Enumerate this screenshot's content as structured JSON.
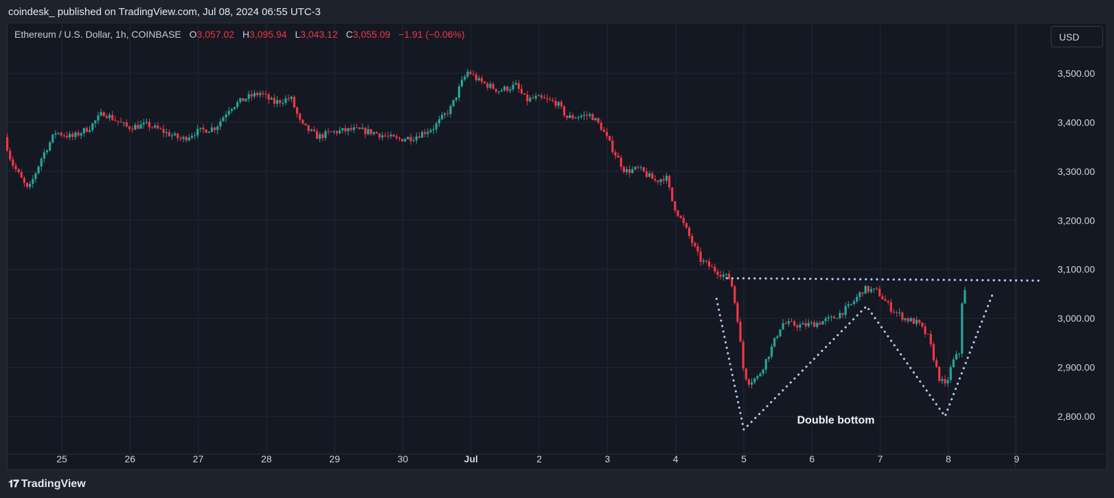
{
  "header": {
    "caption": "coindesk_ published on TradingView.com, Jul 08, 2024 06:55 UTC-3"
  },
  "legend": {
    "symbol": "Ethereum / U.S. Dollar, 1h, COINBASE",
    "o_label": "O",
    "o_value": "3,057.02",
    "h_label": "H",
    "h_value": "3,095.94",
    "l_label": "L",
    "l_value": "3,043.12",
    "c_label": "C",
    "c_value": "3,055.09",
    "change": "−1.91 (−0.06%)"
  },
  "currency_button": "USD",
  "footer": {
    "brand": "TradingView",
    "logo_icon": "tradingview-logo-icon"
  },
  "colors": {
    "up": "#26a69a",
    "down": "#f23645",
    "pattern": "#a9c8f2",
    "grid": "#232734",
    "axis_text": "#d1d4dc"
  },
  "chart_data": {
    "type": "candlestick",
    "title": "",
    "ylim": [
      2730,
      3600
    ],
    "y_ticks": [
      {
        "value": 3500,
        "label": "3,500.00"
      },
      {
        "value": 3400,
        "label": "3,400.00"
      },
      {
        "value": 3300,
        "label": "3,300.00"
      },
      {
        "value": 3200,
        "label": "3,200.00"
      },
      {
        "value": 3100,
        "label": "3,100.00"
      },
      {
        "value": 3000,
        "label": "3,000.00"
      },
      {
        "value": 2900,
        "label": "2,900.00"
      },
      {
        "value": 2800,
        "label": "2,800.00"
      }
    ],
    "x_ticks": [
      {
        "day": 25,
        "label": "25"
      },
      {
        "day": 26,
        "label": "26"
      },
      {
        "day": 27,
        "label": "27"
      },
      {
        "day": 28,
        "label": "28"
      },
      {
        "day": 29,
        "label": "29"
      },
      {
        "day": 30,
        "label": "30"
      },
      {
        "day": 31,
        "label": "Jul"
      },
      {
        "day": 32,
        "label": "2"
      },
      {
        "day": 33,
        "label": "3"
      },
      {
        "day": 34,
        "label": "4"
      },
      {
        "day": 35,
        "label": "5"
      },
      {
        "day": 36,
        "label": "6"
      },
      {
        "day": 37,
        "label": "7"
      },
      {
        "day": 38,
        "label": "8"
      },
      {
        "day": 39,
        "label": "9"
      }
    ],
    "xlim": [
      24.2,
      39.4
    ],
    "price_path": [
      [
        24.2,
        3370
      ],
      [
        24.3,
        3320
      ],
      [
        24.55,
        3260
      ],
      [
        24.75,
        3330
      ],
      [
        24.95,
        3380
      ],
      [
        25.2,
        3370
      ],
      [
        25.45,
        3390
      ],
      [
        25.65,
        3420
      ],
      [
        26.0,
        3390
      ],
      [
        26.3,
        3395
      ],
      [
        26.55,
        3380
      ],
      [
        26.8,
        3365
      ],
      [
        27.0,
        3380
      ],
      [
        27.3,
        3390
      ],
      [
        27.5,
        3430
      ],
      [
        27.75,
        3450
      ],
      [
        27.95,
        3460
      ],
      [
        28.15,
        3440
      ],
      [
        28.4,
        3450
      ],
      [
        28.55,
        3395
      ],
      [
        28.8,
        3370
      ],
      [
        29.0,
        3380
      ],
      [
        29.3,
        3385
      ],
      [
        29.6,
        3380
      ],
      [
        29.95,
        3365
      ],
      [
        30.2,
        3370
      ],
      [
        30.5,
        3390
      ],
      [
        30.75,
        3430
      ],
      [
        30.9,
        3480
      ],
      [
        31.0,
        3505
      ],
      [
        31.15,
        3485
      ],
      [
        31.45,
        3465
      ],
      [
        31.7,
        3475
      ],
      [
        31.85,
        3445
      ],
      [
        32.0,
        3450
      ],
      [
        32.3,
        3440
      ],
      [
        32.45,
        3410
      ],
      [
        32.8,
        3415
      ],
      [
        32.95,
        3390
      ],
      [
        33.1,
        3350
      ],
      [
        33.3,
        3300
      ],
      [
        33.5,
        3305
      ],
      [
        33.75,
        3280
      ],
      [
        33.9,
        3290
      ],
      [
        34.0,
        3235
      ],
      [
        34.2,
        3180
      ],
      [
        34.4,
        3120
      ],
      [
        34.6,
        3100
      ],
      [
        34.85,
        3080
      ],
      [
        34.95,
        3000
      ],
      [
        35.03,
        2900
      ],
      [
        35.1,
        2870
      ],
      [
        35.25,
        2880
      ],
      [
        35.45,
        2940
      ],
      [
        35.6,
        2990
      ],
      [
        35.9,
        2985
      ],
      [
        36.1,
        2990
      ],
      [
        36.35,
        3000
      ],
      [
        36.6,
        3025
      ],
      [
        36.8,
        3060
      ],
      [
        37.0,
        3055
      ],
      [
        37.2,
        3020
      ],
      [
        37.4,
        3000
      ],
      [
        37.6,
        2990
      ],
      [
        37.75,
        2960
      ],
      [
        37.9,
        2880
      ],
      [
        38.0,
        2860
      ],
      [
        38.1,
        2910
      ],
      [
        38.2,
        2930
      ],
      [
        38.25,
        3055
      ]
    ],
    "annotations": [
      {
        "type": "line",
        "label": "",
        "points": [
          [
            34.75,
            3082
          ],
          [
            39.35,
            3077
          ]
        ]
      },
      {
        "type": "polyline",
        "label": "",
        "points": [
          [
            34.6,
            3040
          ],
          [
            35.0,
            2773
          ],
          [
            36.8,
            3025
          ],
          [
            37.95,
            2800
          ],
          [
            38.65,
            3050
          ]
        ]
      },
      {
        "type": "text",
        "label": "Double bottom",
        "at": [
          36.35,
          2785
        ]
      }
    ]
  }
}
